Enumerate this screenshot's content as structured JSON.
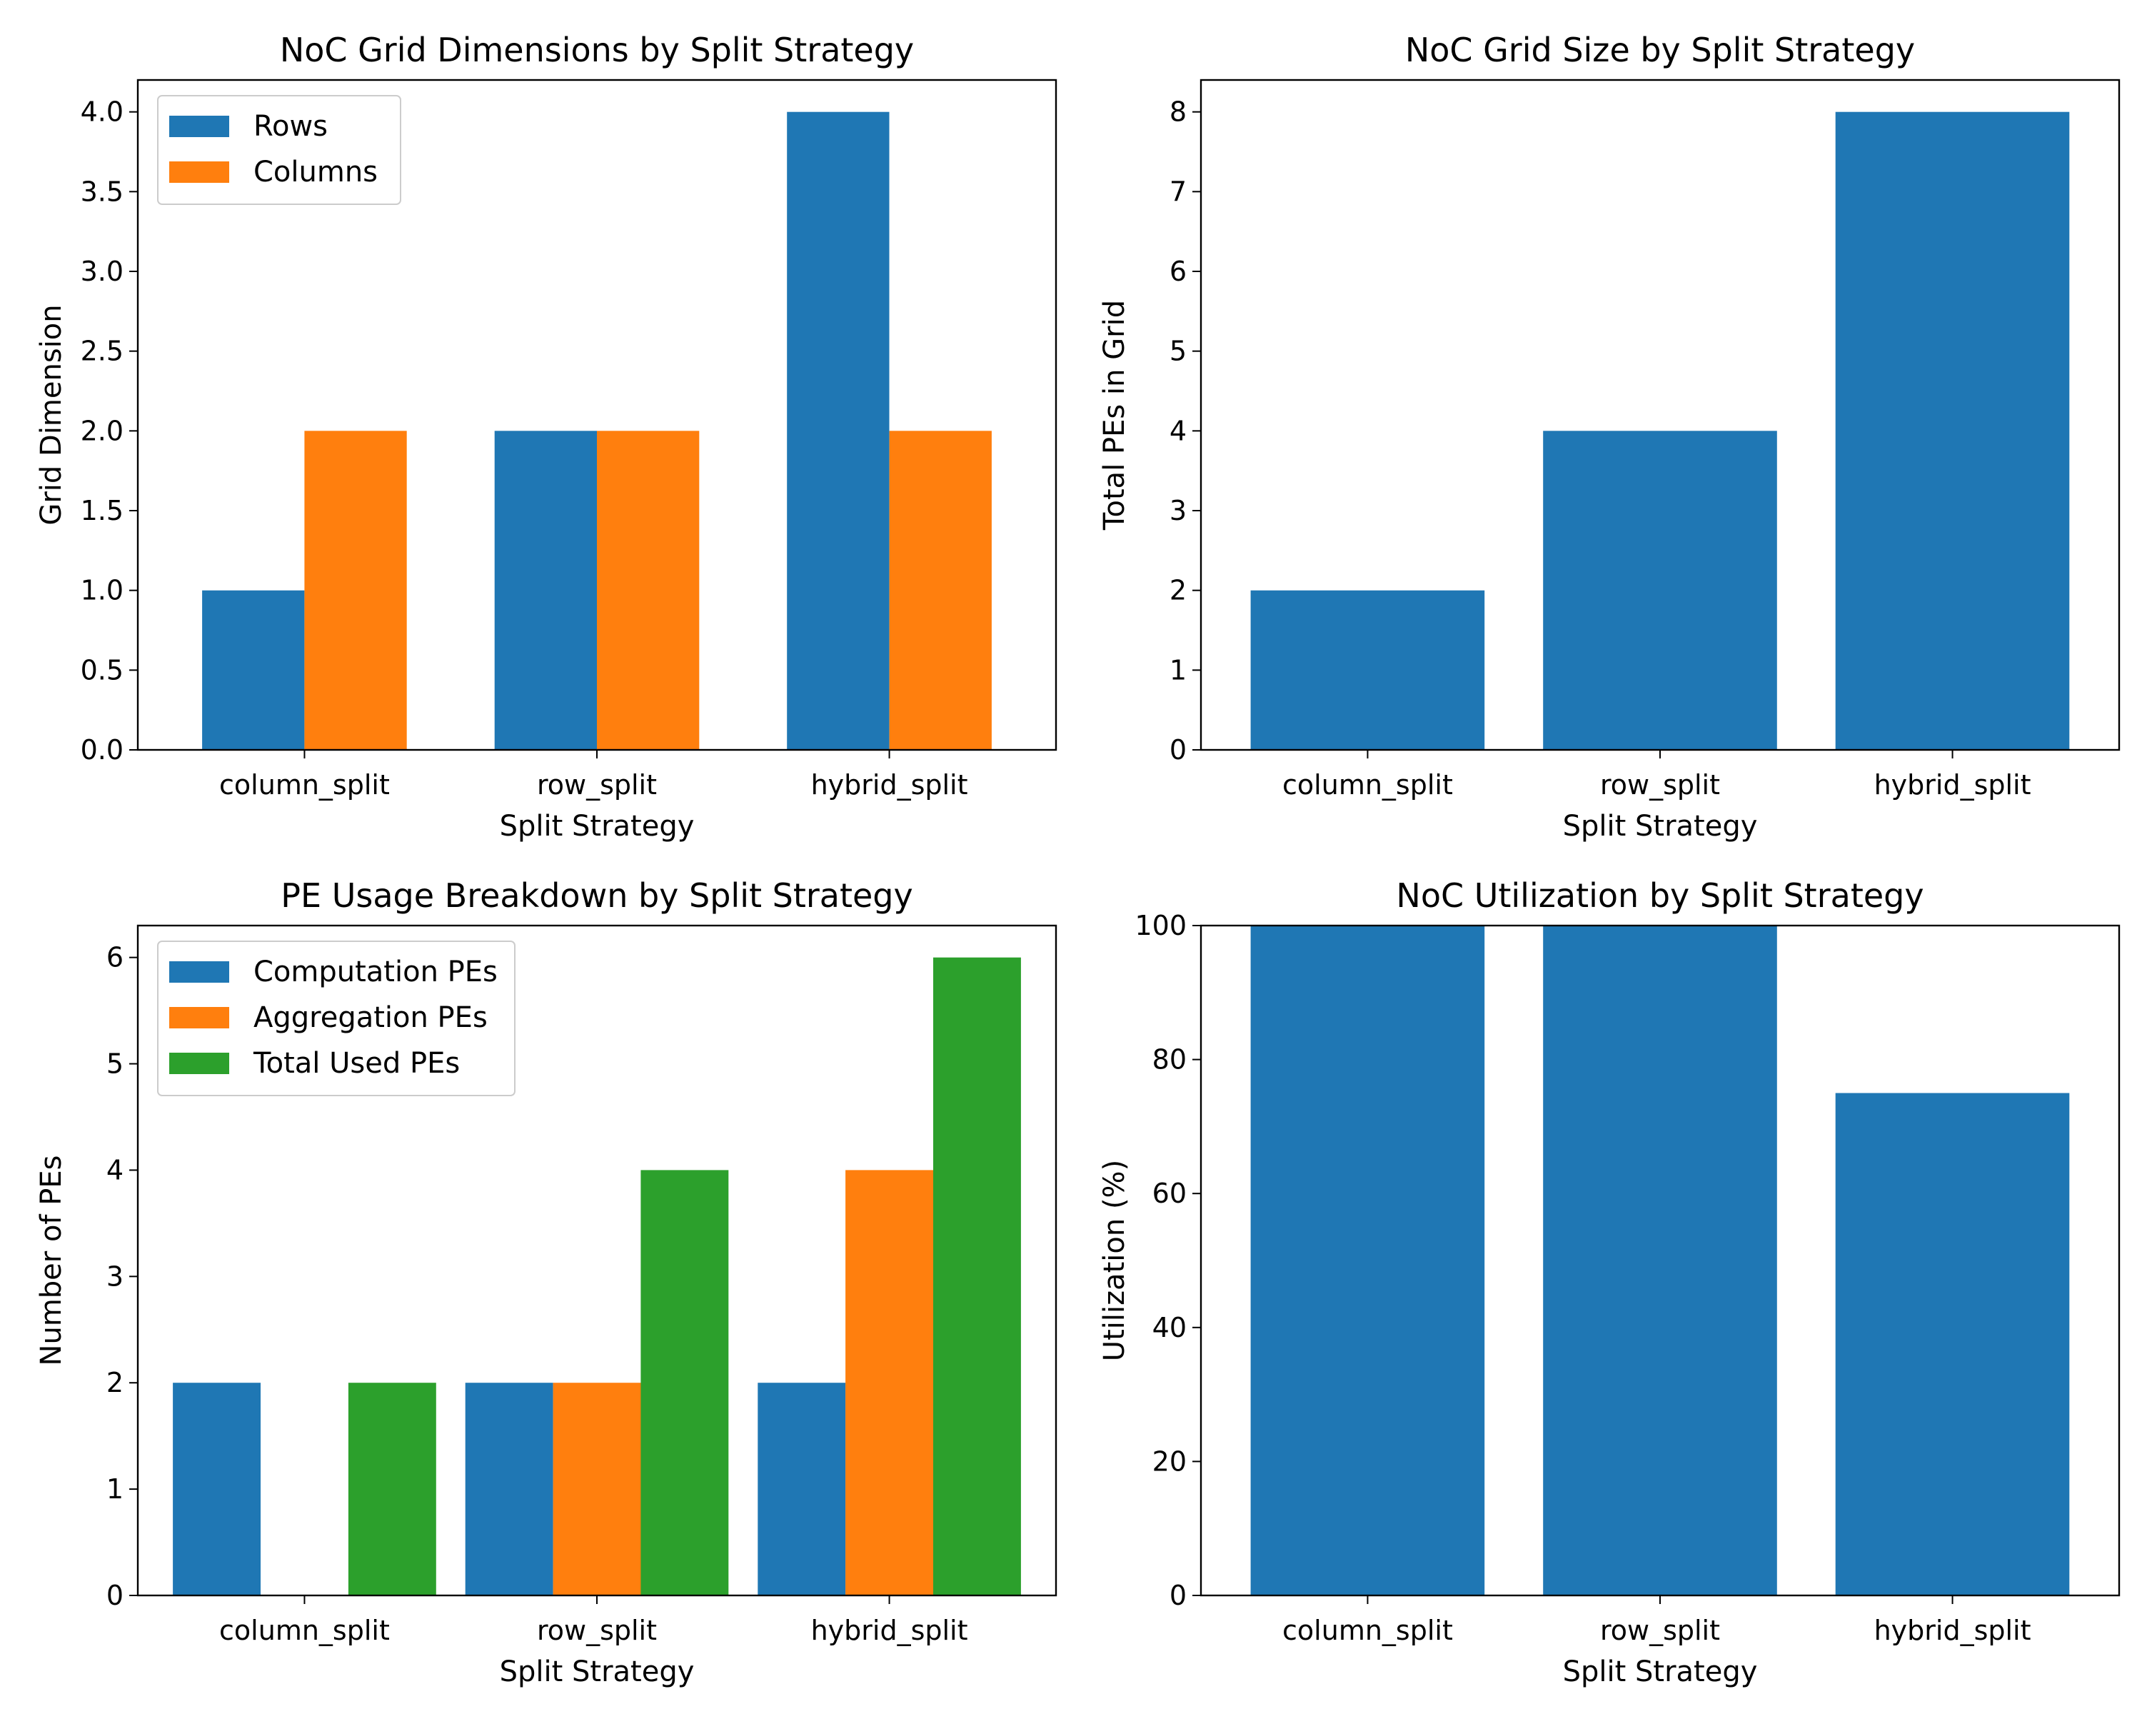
{
  "chart_data": [
    {
      "type": "bar",
      "title": "NoC Grid Dimensions by Split Strategy",
      "xlabel": "Split Strategy",
      "ylabel": "Grid Dimension",
      "categories": [
        "column_split",
        "row_split",
        "hybrid_split"
      ],
      "series": [
        {
          "name": "Rows",
          "color": "#1f77b4",
          "values": [
            1,
            2,
            4
          ]
        },
        {
          "name": "Columns",
          "color": "#ff7f0e",
          "values": [
            2,
            2,
            2
          ]
        }
      ],
      "ylim": [
        0,
        4.2
      ],
      "yticks": [
        0,
        0.5,
        1,
        1.5,
        2,
        2.5,
        3,
        3.5,
        4
      ],
      "ytick_labels": [
        "0.0",
        "0.5",
        "1.0",
        "1.5",
        "2.0",
        "2.5",
        "3.0",
        "3.5",
        "4.0"
      ],
      "legend": "top-left",
      "grid": false
    },
    {
      "type": "bar",
      "title": "NoC Grid Size by Split Strategy",
      "xlabel": "Split Strategy",
      "ylabel": "Total PEs in Grid",
      "categories": [
        "column_split",
        "row_split",
        "hybrid_split"
      ],
      "series": [
        {
          "color": "#1f77b4",
          "values": [
            2,
            4,
            8
          ]
        }
      ],
      "ylim": [
        0,
        8.4
      ],
      "yticks": [
        0,
        1,
        2,
        3,
        4,
        5,
        6,
        7,
        8
      ],
      "ytick_labels": [
        "0",
        "1",
        "2",
        "3",
        "4",
        "5",
        "6",
        "7",
        "8"
      ],
      "grid": false
    },
    {
      "type": "bar",
      "title": "PE Usage Breakdown by Split Strategy",
      "xlabel": "Split Strategy",
      "ylabel": "Number of PEs",
      "categories": [
        "column_split",
        "row_split",
        "hybrid_split"
      ],
      "series": [
        {
          "name": "Computation PEs",
          "color": "#1f77b4",
          "values": [
            2,
            2,
            2
          ]
        },
        {
          "name": "Aggregation PEs",
          "color": "#ff7f0e",
          "values": [
            0,
            2,
            4
          ]
        },
        {
          "name": "Total Used PEs",
          "color": "#2ca02c",
          "values": [
            2,
            4,
            6
          ]
        }
      ],
      "ylim": [
        0,
        6.3
      ],
      "yticks": [
        0,
        1,
        2,
        3,
        4,
        5,
        6
      ],
      "ytick_labels": [
        "0",
        "1",
        "2",
        "3",
        "4",
        "5",
        "6"
      ],
      "legend": "top-left",
      "grid": false
    },
    {
      "type": "bar",
      "title": "NoC Utilization by Split Strategy",
      "xlabel": "Split Strategy",
      "ylabel": "Utilization (%)",
      "categories": [
        "column_split",
        "row_split",
        "hybrid_split"
      ],
      "series": [
        {
          "color": "#1f77b4",
          "values": [
            100,
            100,
            75
          ]
        }
      ],
      "ylim": [
        0,
        100
      ],
      "yticks": [
        0,
        20,
        40,
        60,
        80,
        100
      ],
      "ytick_labels": [
        "0",
        "20",
        "40",
        "60",
        "80",
        "100"
      ],
      "grid": false
    }
  ]
}
